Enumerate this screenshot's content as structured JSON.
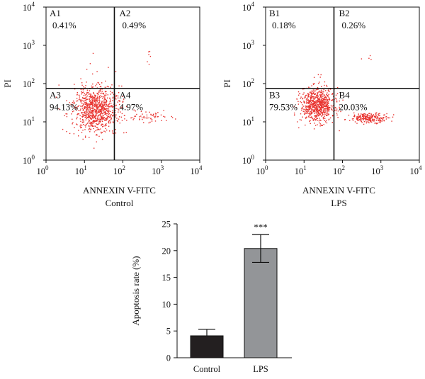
{
  "figure": {
    "panels": [
      {
        "id": "control",
        "ylabel": "PI",
        "xlabel": "ANNEXIN V-FITC",
        "caption": "Control",
        "quadrants": [
          {
            "name": "A1",
            "value": "0.41%"
          },
          {
            "name": "A2",
            "value": "0.49%"
          },
          {
            "name": "A3",
            "value": "94.13%"
          },
          {
            "name": "A4",
            "value": "4.97%"
          }
        ]
      },
      {
        "id": "lps",
        "ylabel": "PI",
        "xlabel": "ANNEXIN V-FITC",
        "caption": "LPS",
        "quadrants": [
          {
            "name": "B1",
            "value": "0.18%"
          },
          {
            "name": "B2",
            "value": "0.26%"
          },
          {
            "name": "B3",
            "value": "79.53%"
          },
          {
            "name": "B4",
            "value": "20.03%"
          }
        ]
      }
    ],
    "log_ticks": [
      "10",
      "10",
      "10",
      "10",
      "10"
    ],
    "log_exponents": [
      "0",
      "1",
      "2",
      "3",
      "4"
    ],
    "colors": {
      "dots": "#e8322e",
      "control_bar": "#231f20",
      "lps_bar": "#939598",
      "axis": "#111111"
    }
  },
  "chart_data": [
    {
      "type": "scatter",
      "scale": "log",
      "xlabel": "ANNEXIN V-FITC",
      "ylabel": "PI",
      "xlim": [
        1,
        10000
      ],
      "ylim": [
        1,
        10000
      ],
      "gate": {
        "x": 60,
        "y": 75
      },
      "caption": "Control",
      "quadrant_percent": {
        "A1": 0.41,
        "A2": 0.49,
        "A3": 94.13,
        "A4": 4.97
      },
      "clusters": [
        {
          "center": [
            20,
            22
          ],
          "spread_log": [
            0.3,
            0.3
          ],
          "count": 900
        },
        {
          "center": [
            450,
            14
          ],
          "spread_log": [
            0.3,
            0.08
          ],
          "count": 60
        },
        {
          "center": [
            20,
            250
          ],
          "spread_log": [
            0.12,
            0.25
          ],
          "count": 6
        },
        {
          "center": [
            600,
            500
          ],
          "spread_log": [
            0.12,
            0.1
          ],
          "count": 6
        }
      ]
    },
    {
      "type": "scatter",
      "scale": "log",
      "xlabel": "ANNEXIN V-FITC",
      "ylabel": "PI",
      "xlim": [
        1,
        10000
      ],
      "ylim": [
        1,
        10000
      ],
      "gate": {
        "x": 60,
        "y": 75
      },
      "caption": "LPS",
      "quadrant_percent": {
        "B1": 0.18,
        "B2": 0.26,
        "B3": 79.53,
        "B4": 20.03
      },
      "clusters": [
        {
          "center": [
            22,
            28
          ],
          "spread_log": [
            0.22,
            0.22
          ],
          "count": 750
        },
        {
          "center": [
            500,
            13
          ],
          "spread_log": [
            0.25,
            0.06
          ],
          "count": 220
        },
        {
          "center": [
            25,
            200
          ],
          "spread_log": [
            0.08,
            0.15
          ],
          "count": 3
        },
        {
          "center": [
            500,
            450
          ],
          "spread_log": [
            0.1,
            0.05
          ],
          "count": 4
        }
      ]
    },
    {
      "type": "bar",
      "categories": [
        "Control",
        "LPS"
      ],
      "values": [
        4.1,
        20.4
      ],
      "errors": [
        1.2,
        2.6
      ],
      "ylabel": "Apoptosis rate (%)",
      "ylim": [
        0,
        25
      ],
      "yticks": [
        "0",
        "5",
        "10",
        "15",
        "20",
        "25"
      ],
      "annotations": [
        {
          "category": "LPS",
          "text": "***"
        }
      ]
    }
  ]
}
